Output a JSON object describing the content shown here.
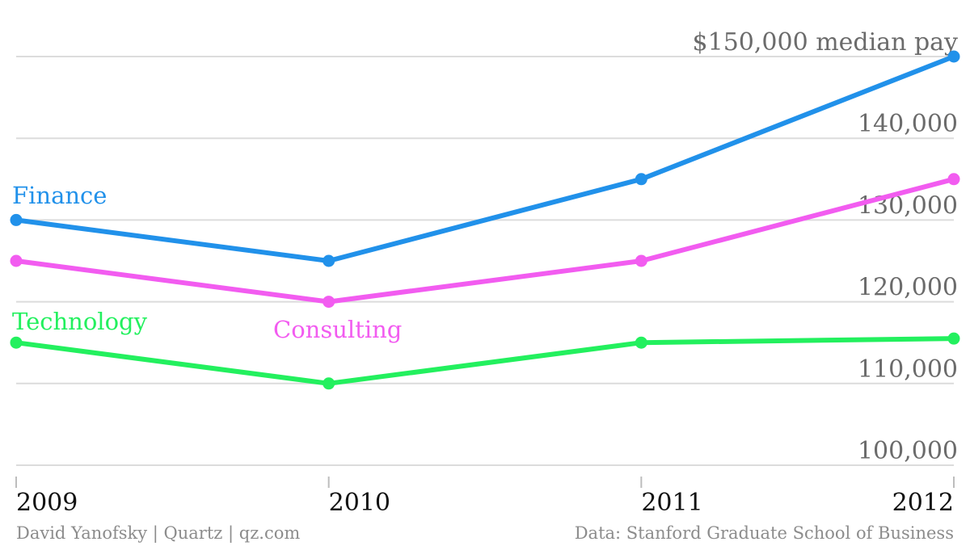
{
  "chart_data": {
    "type": "line",
    "x": [
      "2009",
      "2010",
      "2011",
      "2012"
    ],
    "series": [
      {
        "name": "Finance",
        "values": [
          130000,
          125000,
          135000,
          150000
        ],
        "color": "#2191ea"
      },
      {
        "name": "Consulting",
        "values": [
          125000,
          120000,
          125000,
          135000
        ],
        "color": "#f25cf0"
      },
      {
        "name": "Technology",
        "values": [
          115000,
          110000,
          115000,
          115500
        ],
        "color": "#23f05e"
      }
    ],
    "y_ticks": [
      {
        "value": 150000,
        "label": "$150,000 median pay"
      },
      {
        "value": 140000,
        "label": "140,000"
      },
      {
        "value": 130000,
        "label": "130,000"
      },
      {
        "value": 120000,
        "label": "120,000"
      },
      {
        "value": 110000,
        "label": "110,000"
      },
      {
        "value": 100000,
        "label": "100,000"
      }
    ],
    "ylim": [
      100000,
      150000
    ],
    "grid": true,
    "legend": "inline labels",
    "title": "",
    "xlabel": "",
    "ylabel": ""
  },
  "footer": {
    "credit_left": "David Yanofsky | Quartz | qz.com",
    "credit_right": "Data: Stanford Graduate School of Business"
  }
}
